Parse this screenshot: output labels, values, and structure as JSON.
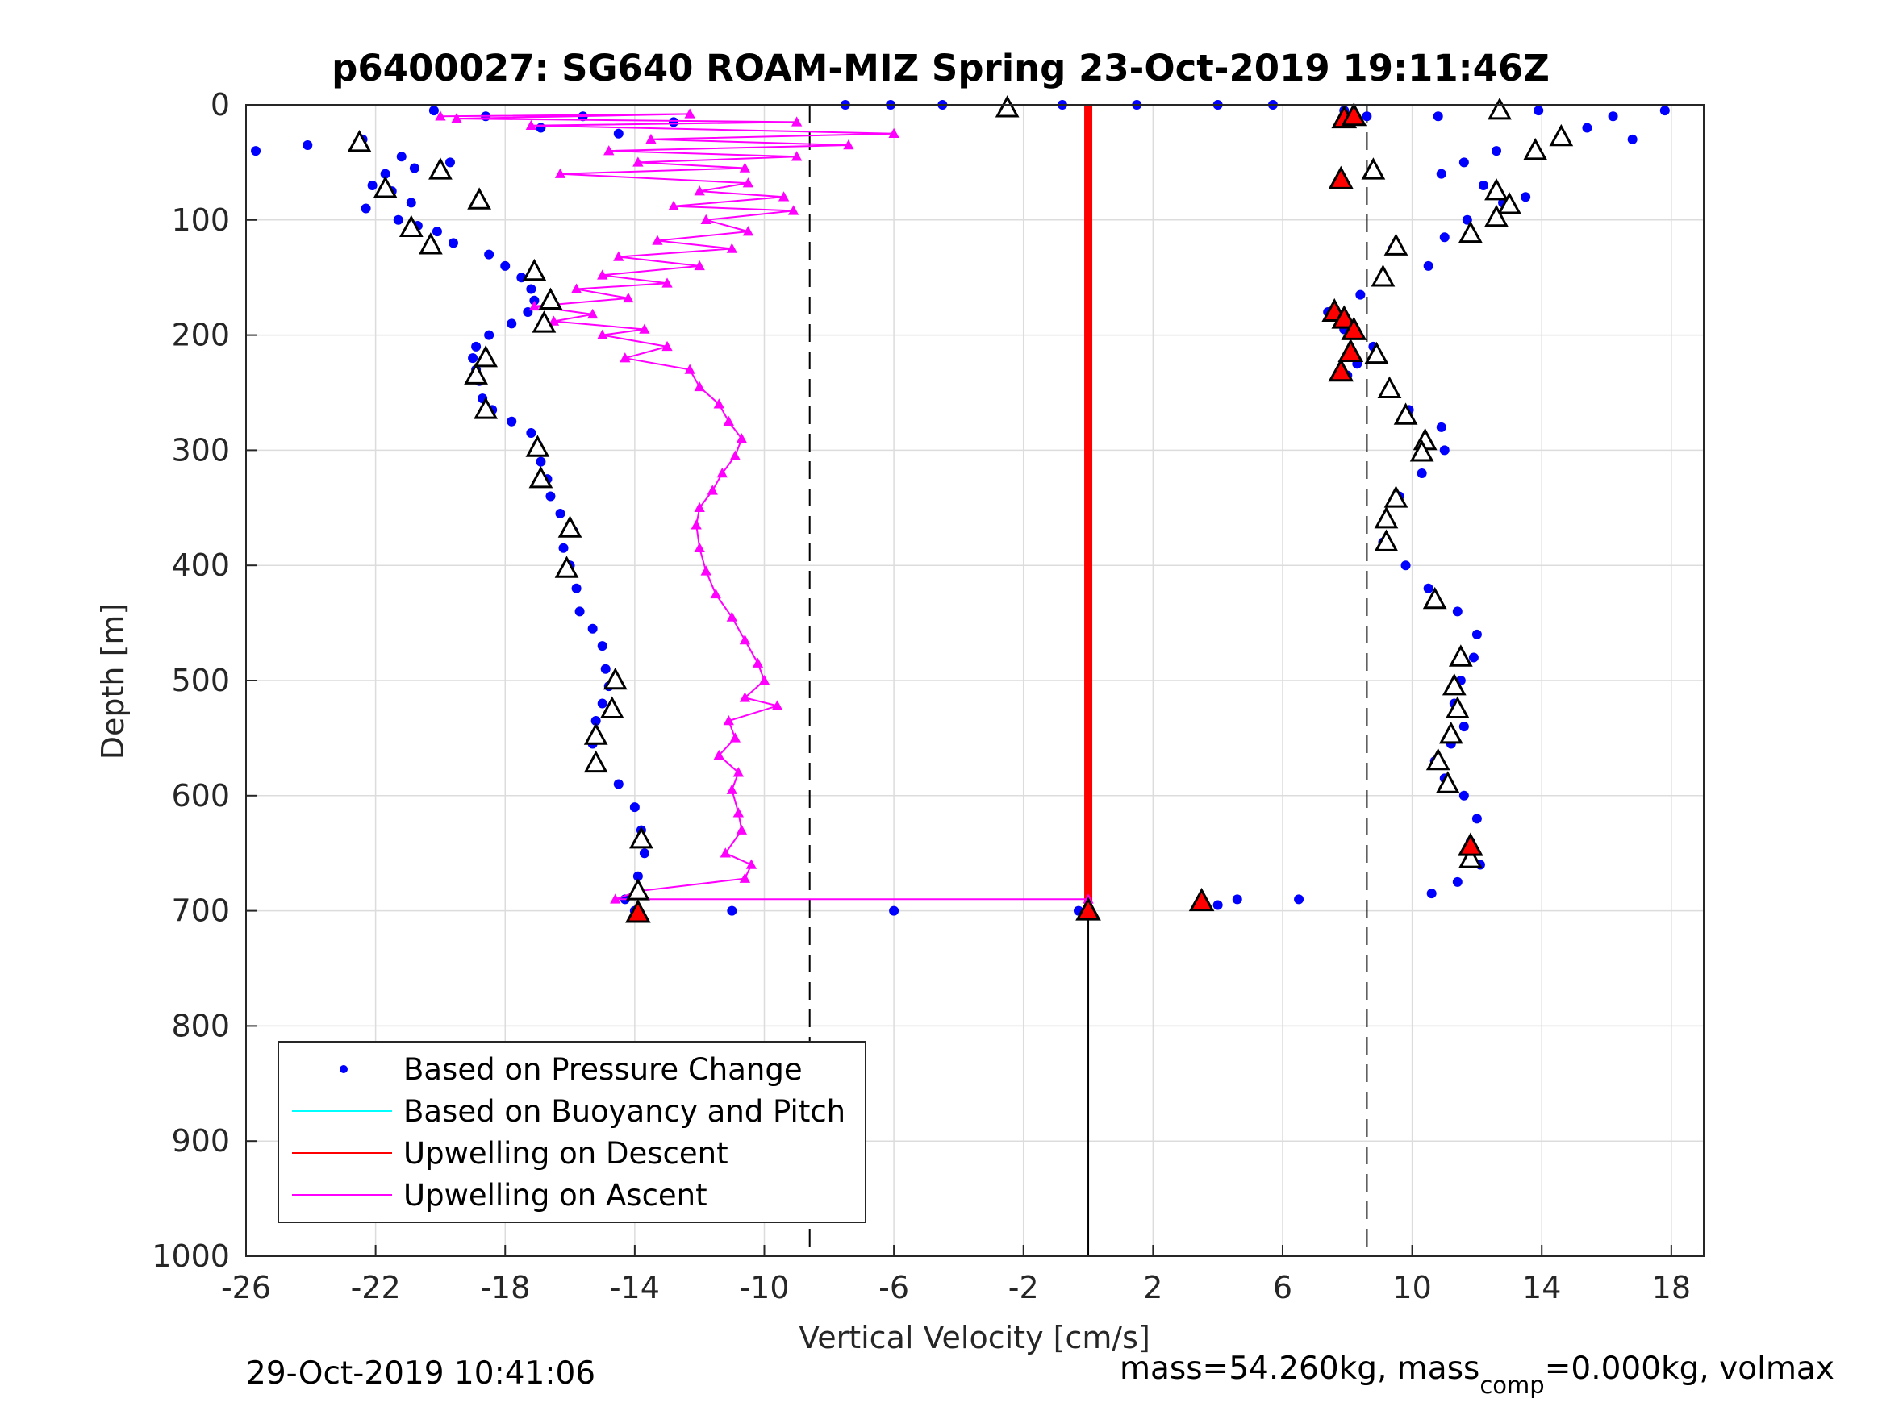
{
  "chart_data": {
    "type": "scatter",
    "title": "p6400027: SG640 ROAM-MIZ Spring 23-Oct-2019 19:11:46Z",
    "xlabel": "Vertical Velocity [cm/s]",
    "ylabel": "Depth [m]",
    "xlim": [
      -26,
      19
    ],
    "ylim": [
      0,
      1000
    ],
    "y_reversed": true,
    "grid": true,
    "x_ticks": [
      -26,
      -22,
      -18,
      -14,
      -10,
      -6,
      -2,
      2,
      6,
      10,
      14,
      18
    ],
    "y_ticks": [
      0,
      100,
      200,
      300,
      400,
      500,
      600,
      700,
      800,
      900,
      1000
    ],
    "reference_lines": [
      {
        "style": "dashed",
        "x": -8.6
      },
      {
        "style": "dashed",
        "x": 8.6
      },
      {
        "style": "solid",
        "x": 0,
        "y_range": [
          700,
          1000
        ]
      }
    ],
    "legend_location": "bottom-left",
    "series": [
      {
        "name": "Based on Pressure Change",
        "type": "scatter",
        "color": "#0000ff",
        "marker": "dot",
        "points": [
          [
            -20.2,
            5
          ],
          [
            -18.6,
            10
          ],
          [
            -15.6,
            10
          ],
          [
            -12.8,
            15
          ],
          [
            -16.9,
            20
          ],
          [
            -14.5,
            25
          ],
          [
            -22.4,
            30
          ],
          [
            -24.1,
            35
          ],
          [
            -25.7,
            40
          ],
          [
            -21.2,
            45
          ],
          [
            -19.7,
            50
          ],
          [
            -20.8,
            55
          ],
          [
            -21.7,
            60
          ],
          [
            -22.1,
            70
          ],
          [
            -21.5,
            75
          ],
          [
            -20.9,
            85
          ],
          [
            -22.3,
            90
          ],
          [
            -21.3,
            100
          ],
          [
            -20.7,
            105
          ],
          [
            -20.1,
            110
          ],
          [
            -19.6,
            120
          ],
          [
            -18.5,
            130
          ],
          [
            -18.0,
            140
          ],
          [
            -17.5,
            150
          ],
          [
            -17.2,
            160
          ],
          [
            -17.1,
            170
          ],
          [
            -17.3,
            180
          ],
          [
            -17.8,
            190
          ],
          [
            -18.5,
            200
          ],
          [
            -18.9,
            210
          ],
          [
            -19.0,
            220
          ],
          [
            -18.9,
            230
          ],
          [
            -18.8,
            240
          ],
          [
            -18.7,
            255
          ],
          [
            -18.4,
            265
          ],
          [
            -17.8,
            275
          ],
          [
            -17.2,
            285
          ],
          [
            -17.0,
            295
          ],
          [
            -16.9,
            310
          ],
          [
            -16.7,
            325
          ],
          [
            -16.6,
            340
          ],
          [
            -16.3,
            355
          ],
          [
            -15.9,
            370
          ],
          [
            -16.2,
            385
          ],
          [
            -16.0,
            400
          ],
          [
            -15.8,
            420
          ],
          [
            -15.7,
            440
          ],
          [
            -15.3,
            455
          ],
          [
            -15.0,
            470
          ],
          [
            -14.9,
            490
          ],
          [
            -14.8,
            505
          ],
          [
            -15.0,
            520
          ],
          [
            -15.2,
            535
          ],
          [
            -15.3,
            555
          ],
          [
            -15.2,
            575
          ],
          [
            -14.5,
            590
          ],
          [
            -14.0,
            610
          ],
          [
            -13.8,
            630
          ],
          [
            -13.7,
            650
          ],
          [
            -13.9,
            670
          ],
          [
            -14.3,
            690
          ],
          [
            -14.0,
            700
          ],
          [
            -11.0,
            700
          ],
          [
            -6.0,
            700
          ],
          [
            -0.3,
            700
          ],
          [
            -7.5,
            0
          ],
          [
            -6.1,
            0
          ],
          [
            -4.5,
            0
          ],
          [
            -0.8,
            0
          ],
          [
            1.5,
            0
          ],
          [
            4.0,
            0
          ],
          [
            5.7,
            0
          ],
          [
            7.9,
            5
          ],
          [
            8.6,
            10
          ],
          [
            10.8,
            10
          ],
          [
            13.9,
            5
          ],
          [
            16.2,
            10
          ],
          [
            17.8,
            5
          ],
          [
            15.4,
            20
          ],
          [
            16.8,
            30
          ],
          [
            12.6,
            40
          ],
          [
            11.6,
            50
          ],
          [
            10.9,
            60
          ],
          [
            12.2,
            70
          ],
          [
            13.5,
            80
          ],
          [
            12.8,
            85
          ],
          [
            11.7,
            100
          ],
          [
            11.0,
            115
          ],
          [
            9.4,
            125
          ],
          [
            10.5,
            140
          ],
          [
            9.1,
            150
          ],
          [
            8.4,
            165
          ],
          [
            7.4,
            180
          ],
          [
            7.9,
            195
          ],
          [
            8.8,
            210
          ],
          [
            8.3,
            225
          ],
          [
            8.0,
            235
          ],
          [
            9.2,
            250
          ],
          [
            9.9,
            265
          ],
          [
            10.9,
            280
          ],
          [
            11.0,
            300
          ],
          [
            10.3,
            320
          ],
          [
            9.6,
            340
          ],
          [
            9.2,
            360
          ],
          [
            9.1,
            380
          ],
          [
            9.8,
            400
          ],
          [
            10.5,
            420
          ],
          [
            11.4,
            440
          ],
          [
            12.0,
            460
          ],
          [
            11.9,
            480
          ],
          [
            11.5,
            500
          ],
          [
            11.3,
            520
          ],
          [
            11.6,
            540
          ],
          [
            11.2,
            555
          ],
          [
            10.7,
            570
          ],
          [
            11.0,
            585
          ],
          [
            11.6,
            600
          ],
          [
            12.0,
            620
          ],
          [
            11.8,
            640
          ],
          [
            12.1,
            660
          ],
          [
            11.4,
            675
          ],
          [
            10.6,
            685
          ],
          [
            4.0,
            695
          ],
          [
            4.6,
            690
          ],
          [
            6.5,
            690
          ]
        ]
      },
      {
        "name": "Based on Buoyancy and Pitch",
        "type": "line",
        "color": "#00ffff",
        "points": []
      },
      {
        "name": "Upwelling on Descent",
        "type": "line",
        "color": "#ff0000",
        "points": [
          [
            0,
            0
          ],
          [
            0,
            700
          ]
        ]
      },
      {
        "name": "Upwelling on Ascent",
        "type": "line",
        "color": "#ff00ff",
        "marker": "triangle",
        "points": [
          [
            -20.0,
            10
          ],
          [
            -12.3,
            8
          ],
          [
            -19.5,
            12
          ],
          [
            -9.0,
            15
          ],
          [
            -17.2,
            18
          ],
          [
            -6.0,
            25
          ],
          [
            -13.5,
            30
          ],
          [
            -7.4,
            35
          ],
          [
            -14.8,
            40
          ],
          [
            -9.0,
            45
          ],
          [
            -13.9,
            50
          ],
          [
            -10.6,
            55
          ],
          [
            -16.3,
            60
          ],
          [
            -10.5,
            68
          ],
          [
            -12.0,
            75
          ],
          [
            -9.4,
            80
          ],
          [
            -12.8,
            88
          ],
          [
            -9.1,
            92
          ],
          [
            -11.8,
            100
          ],
          [
            -10.5,
            110
          ],
          [
            -13.3,
            118
          ],
          [
            -11.0,
            125
          ],
          [
            -14.5,
            132
          ],
          [
            -12.0,
            140
          ],
          [
            -15.0,
            148
          ],
          [
            -13.0,
            155
          ],
          [
            -15.8,
            160
          ],
          [
            -14.2,
            168
          ],
          [
            -17.1,
            175
          ],
          [
            -15.3,
            182
          ],
          [
            -16.5,
            188
          ],
          [
            -13.7,
            195
          ],
          [
            -15.0,
            200
          ],
          [
            -13.0,
            210
          ],
          [
            -14.3,
            220
          ],
          [
            -12.3,
            230
          ],
          [
            -12.0,
            245
          ],
          [
            -11.4,
            260
          ],
          [
            -11.1,
            275
          ],
          [
            -10.7,
            290
          ],
          [
            -10.9,
            305
          ],
          [
            -11.3,
            320
          ],
          [
            -11.6,
            335
          ],
          [
            -12.0,
            350
          ],
          [
            -12.1,
            365
          ],
          [
            -12.0,
            385
          ],
          [
            -11.8,
            405
          ],
          [
            -11.5,
            425
          ],
          [
            -11.0,
            445
          ],
          [
            -10.6,
            465
          ],
          [
            -10.2,
            485
          ],
          [
            -10.0,
            500
          ],
          [
            -10.6,
            515
          ],
          [
            -9.6,
            522
          ],
          [
            -11.1,
            535
          ],
          [
            -10.9,
            550
          ],
          [
            -11.4,
            565
          ],
          [
            -10.8,
            580
          ],
          [
            -11.0,
            595
          ],
          [
            -10.8,
            615
          ],
          [
            -10.7,
            630
          ],
          [
            -11.2,
            650
          ],
          [
            -10.4,
            660
          ],
          [
            -10.6,
            672
          ],
          [
            -13.9,
            683
          ],
          [
            -14.6,
            690
          ],
          [
            0,
            690
          ]
        ]
      }
    ],
    "extra_markers": {
      "descent_triangles": [
        [
          -22.5,
          33
        ],
        [
          -20.0,
          57
        ],
        [
          -21.7,
          73
        ],
        [
          -18.8,
          83
        ],
        [
          -20.9,
          107
        ],
        [
          -20.3,
          122
        ],
        [
          -17.1,
          145
        ],
        [
          -16.6,
          170
        ],
        [
          -16.8,
          190
        ],
        [
          -18.6,
          220
        ],
        [
          -18.9,
          235
        ],
        [
          -18.6,
          265
        ],
        [
          -17.0,
          298
        ],
        [
          -16.9,
          325
        ],
        [
          -16.0,
          368
        ],
        [
          -16.1,
          403
        ],
        [
          -14.6,
          500
        ],
        [
          -14.7,
          525
        ],
        [
          -15.2,
          548
        ],
        [
          -15.2,
          572
        ],
        [
          -13.8,
          638
        ],
        [
          -13.9,
          683
        ],
        [
          -2.5,
          3
        ],
        [
          12.7,
          5
        ],
        [
          14.6,
          28
        ],
        [
          13.8,
          40
        ],
        [
          8.8,
          57
        ],
        [
          12.6,
          75
        ],
        [
          13.0,
          87
        ],
        [
          12.6,
          98
        ],
        [
          11.8,
          112
        ],
        [
          9.5,
          123
        ],
        [
          9.1,
          150
        ],
        [
          8.9,
          217
        ],
        [
          9.3,
          247
        ],
        [
          9.8,
          270
        ],
        [
          10.4,
          292
        ],
        [
          10.3,
          302
        ],
        [
          9.5,
          342
        ],
        [
          9.2,
          360
        ],
        [
          9.2,
          380
        ],
        [
          10.7,
          430
        ],
        [
          11.5,
          480
        ],
        [
          11.3,
          505
        ],
        [
          11.4,
          525
        ],
        [
          11.2,
          547
        ],
        [
          10.8,
          570
        ],
        [
          11.1,
          590
        ],
        [
          11.8,
          655
        ]
      ],
      "highlight_points": [
        [
          -13.9,
          702
        ],
        [
          0,
          700
        ],
        [
          3.5,
          692
        ],
        [
          7.8,
          65
        ],
        [
          7.9,
          12
        ],
        [
          8.2,
          10
        ],
        [
          7.6,
          180
        ],
        [
          7.9,
          186
        ],
        [
          8.2,
          196
        ],
        [
          8.1,
          215
        ],
        [
          7.8,
          232
        ],
        [
          11.8,
          644
        ]
      ]
    }
  },
  "footer": {
    "timestamp": "29-Oct-2019 10:41:06",
    "mass_prefix": "mass=54.260kg, mass",
    "mass_sub": "comp",
    "mass_suffix": "=0.000kg, volmax"
  },
  "legend": {
    "entries": [
      {
        "label": "Based on Pressure Change",
        "color": "#0000ff",
        "kind": "dot"
      },
      {
        "label": "Based on Buoyancy and Pitch",
        "color": "#00ffff",
        "kind": "line"
      },
      {
        "label": "Upwelling on Descent",
        "color": "#ff0000",
        "kind": "line"
      },
      {
        "label": "Upwelling on Ascent",
        "color": "#ff00ff",
        "kind": "line"
      }
    ]
  }
}
